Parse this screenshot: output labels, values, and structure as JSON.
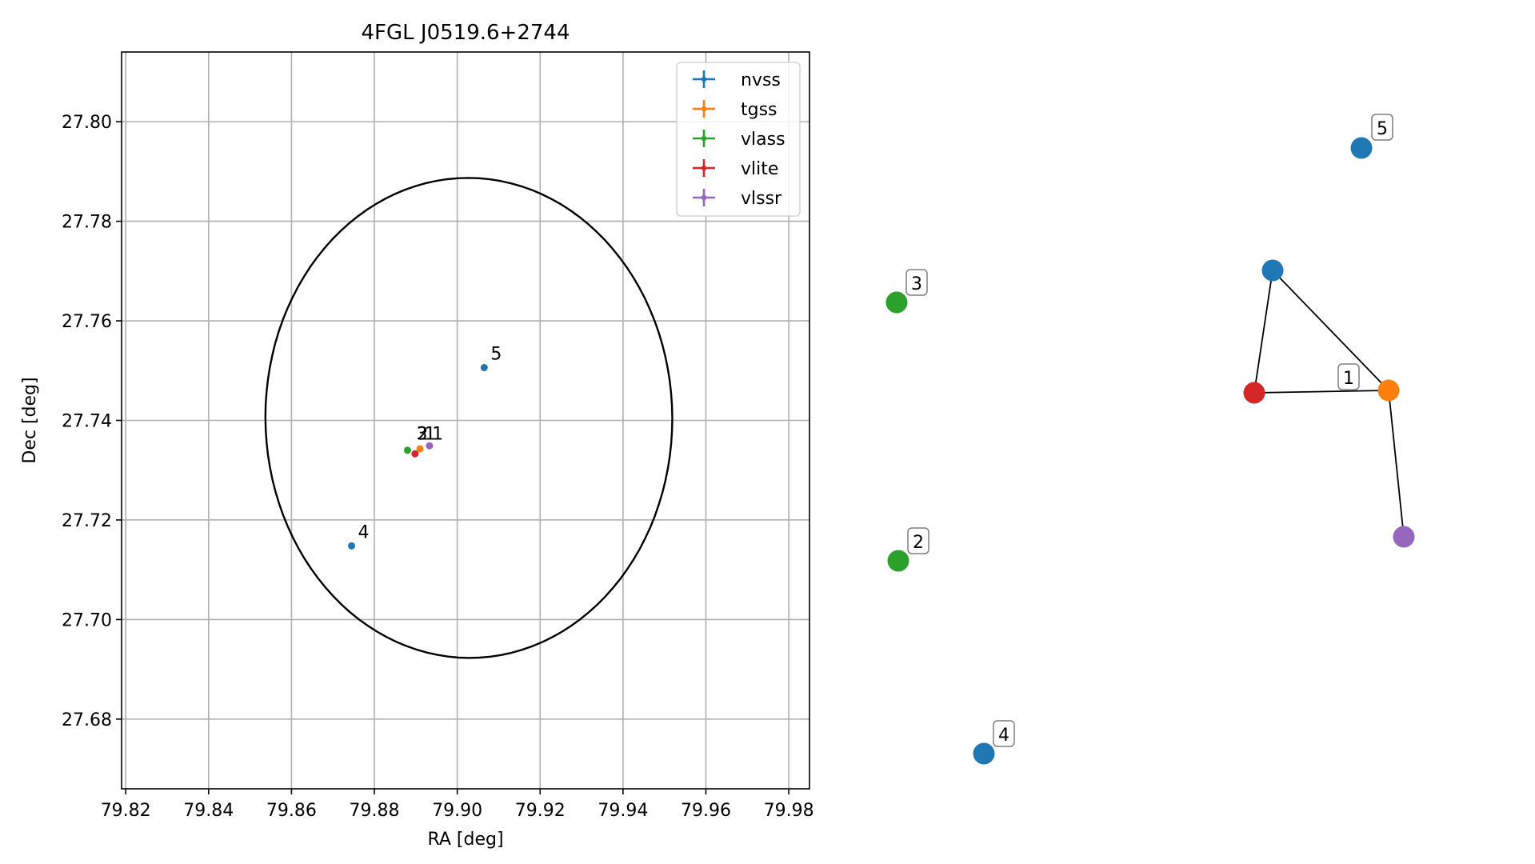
{
  "chart_data": [
    {
      "type": "scatter",
      "title": "4FGL J0519.6+2744",
      "xlabel": "RA [deg]",
      "ylabel": "Dec [deg]",
      "xlim": [
        79.819,
        79.985
      ],
      "ylim": [
        27.666,
        27.814
      ],
      "xticks": [
        "79.82",
        "79.84",
        "79.86",
        "79.88",
        "79.90",
        "79.92",
        "79.94",
        "79.96",
        "79.98"
      ],
      "yticks": [
        "27.68",
        "27.70",
        "27.72",
        "27.74",
        "27.76",
        "27.78",
        "27.80"
      ],
      "grid": true,
      "legend_position": "top-right",
      "ellipse": {
        "center": [
          79.9028,
          27.7405
        ],
        "semi_ra": 0.0491,
        "semi_dec": 0.0482,
        "angle_deg": -6,
        "color": "#000000"
      },
      "series": [
        {
          "name": "nvss",
          "color": "#1f77b4",
          "points": [
            {
              "x": 79.8745,
              "y": 27.7148,
              "label": "4"
            },
            {
              "x": 79.9065,
              "y": 27.7506,
              "label": "5"
            }
          ]
        },
        {
          "name": "tgss",
          "color": "#ff7f0e",
          "points": [
            {
              "x": 79.891,
              "y": 27.7343,
              "label": ""
            }
          ]
        },
        {
          "name": "vlass",
          "color": "#2ca02c",
          "points": [
            {
              "x": 79.888,
              "y": 27.734,
              "label": ""
            }
          ]
        },
        {
          "name": "vlite",
          "color": "#d62728",
          "points": [
            {
              "x": 79.8898,
              "y": 27.7333,
              "label": ""
            }
          ]
        },
        {
          "name": "vlssr",
          "color": "#9467bd",
          "points": [
            {
              "x": 79.8933,
              "y": 27.7349,
              "label": ""
            }
          ]
        }
      ],
      "point_labels": [
        {
          "text": "3",
          "x": 79.8905,
          "y": 27.7358
        },
        {
          "text": "2",
          "x": 79.8907,
          "y": 27.7358
        },
        {
          "text": "1",
          "x": 79.8925,
          "y": 27.7358
        },
        {
          "text": "1",
          "x": 79.8943,
          "y": 27.7358
        }
      ]
    },
    {
      "type": "network",
      "nodes": [
        {
          "id": "n_top",
          "color": "#1f77b4",
          "label": "5"
        },
        {
          "id": "n_mid",
          "color": "#1f77b4",
          "label": ""
        },
        {
          "id": "n_red",
          "color": "#d62728",
          "label": ""
        },
        {
          "id": "n_orng",
          "color": "#ff7f0e",
          "label": "1"
        },
        {
          "id": "n_purp",
          "color": "#9467bd",
          "label": ""
        },
        {
          "id": "n_g3",
          "color": "#2ca02c",
          "label": "3"
        },
        {
          "id": "n_g2",
          "color": "#2ca02c",
          "label": "2"
        },
        {
          "id": "n_b4",
          "color": "#1f77b4",
          "label": "4"
        }
      ],
      "edges": [
        [
          "n_mid",
          "n_red"
        ],
        [
          "n_mid",
          "n_orng"
        ],
        [
          "n_red",
          "n_orng"
        ],
        [
          "n_orng",
          "n_purp"
        ]
      ]
    }
  ]
}
